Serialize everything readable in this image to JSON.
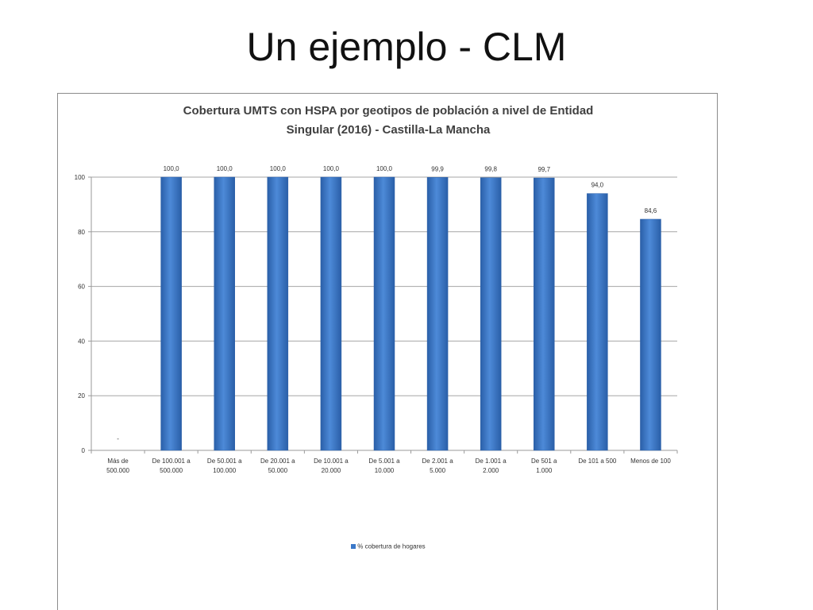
{
  "slide": {
    "title": "Un ejemplo - CLM"
  },
  "chart_data": {
    "type": "bar",
    "title_lines": [
      "Cobertura UMTS con HSPA por geotipos de población a nivel de Entidad",
      "Singular (2016)  - Castilla-La  Mancha"
    ],
    "categories": [
      [
        "Más de",
        "500.000"
      ],
      [
        "De 100.001 a",
        "500.000"
      ],
      [
        "De 50.001 a",
        "100.000"
      ],
      [
        "De 20.001 a",
        "50.000"
      ],
      [
        "De 10.001 a",
        "20.000"
      ],
      [
        "De 5.001 a",
        "10.000"
      ],
      [
        "De 2.001 a",
        "5.000"
      ],
      [
        "De 1.001 a",
        "2.000"
      ],
      [
        "De 501 a",
        "1.000"
      ],
      [
        "De 101 a 500"
      ],
      [
        "Menos de 100"
      ]
    ],
    "series": [
      {
        "name": "% cobertura de hogares",
        "color": "#3a78c9",
        "values": [
          null,
          100.0,
          100.0,
          100.0,
          100.0,
          100.0,
          99.9,
          99.8,
          99.7,
          94.0,
          84.6
        ],
        "labels": [
          "-",
          "100,0",
          "100,0",
          "100,0",
          "100,0",
          "100,0",
          "99,9",
          "99,8",
          "99,7",
          "94,0",
          "84,6"
        ]
      }
    ],
    "ylim": [
      0,
      100
    ],
    "yticks": [
      0,
      20,
      40,
      60,
      80,
      100
    ],
    "grid": true,
    "legend_position": "bottom"
  }
}
